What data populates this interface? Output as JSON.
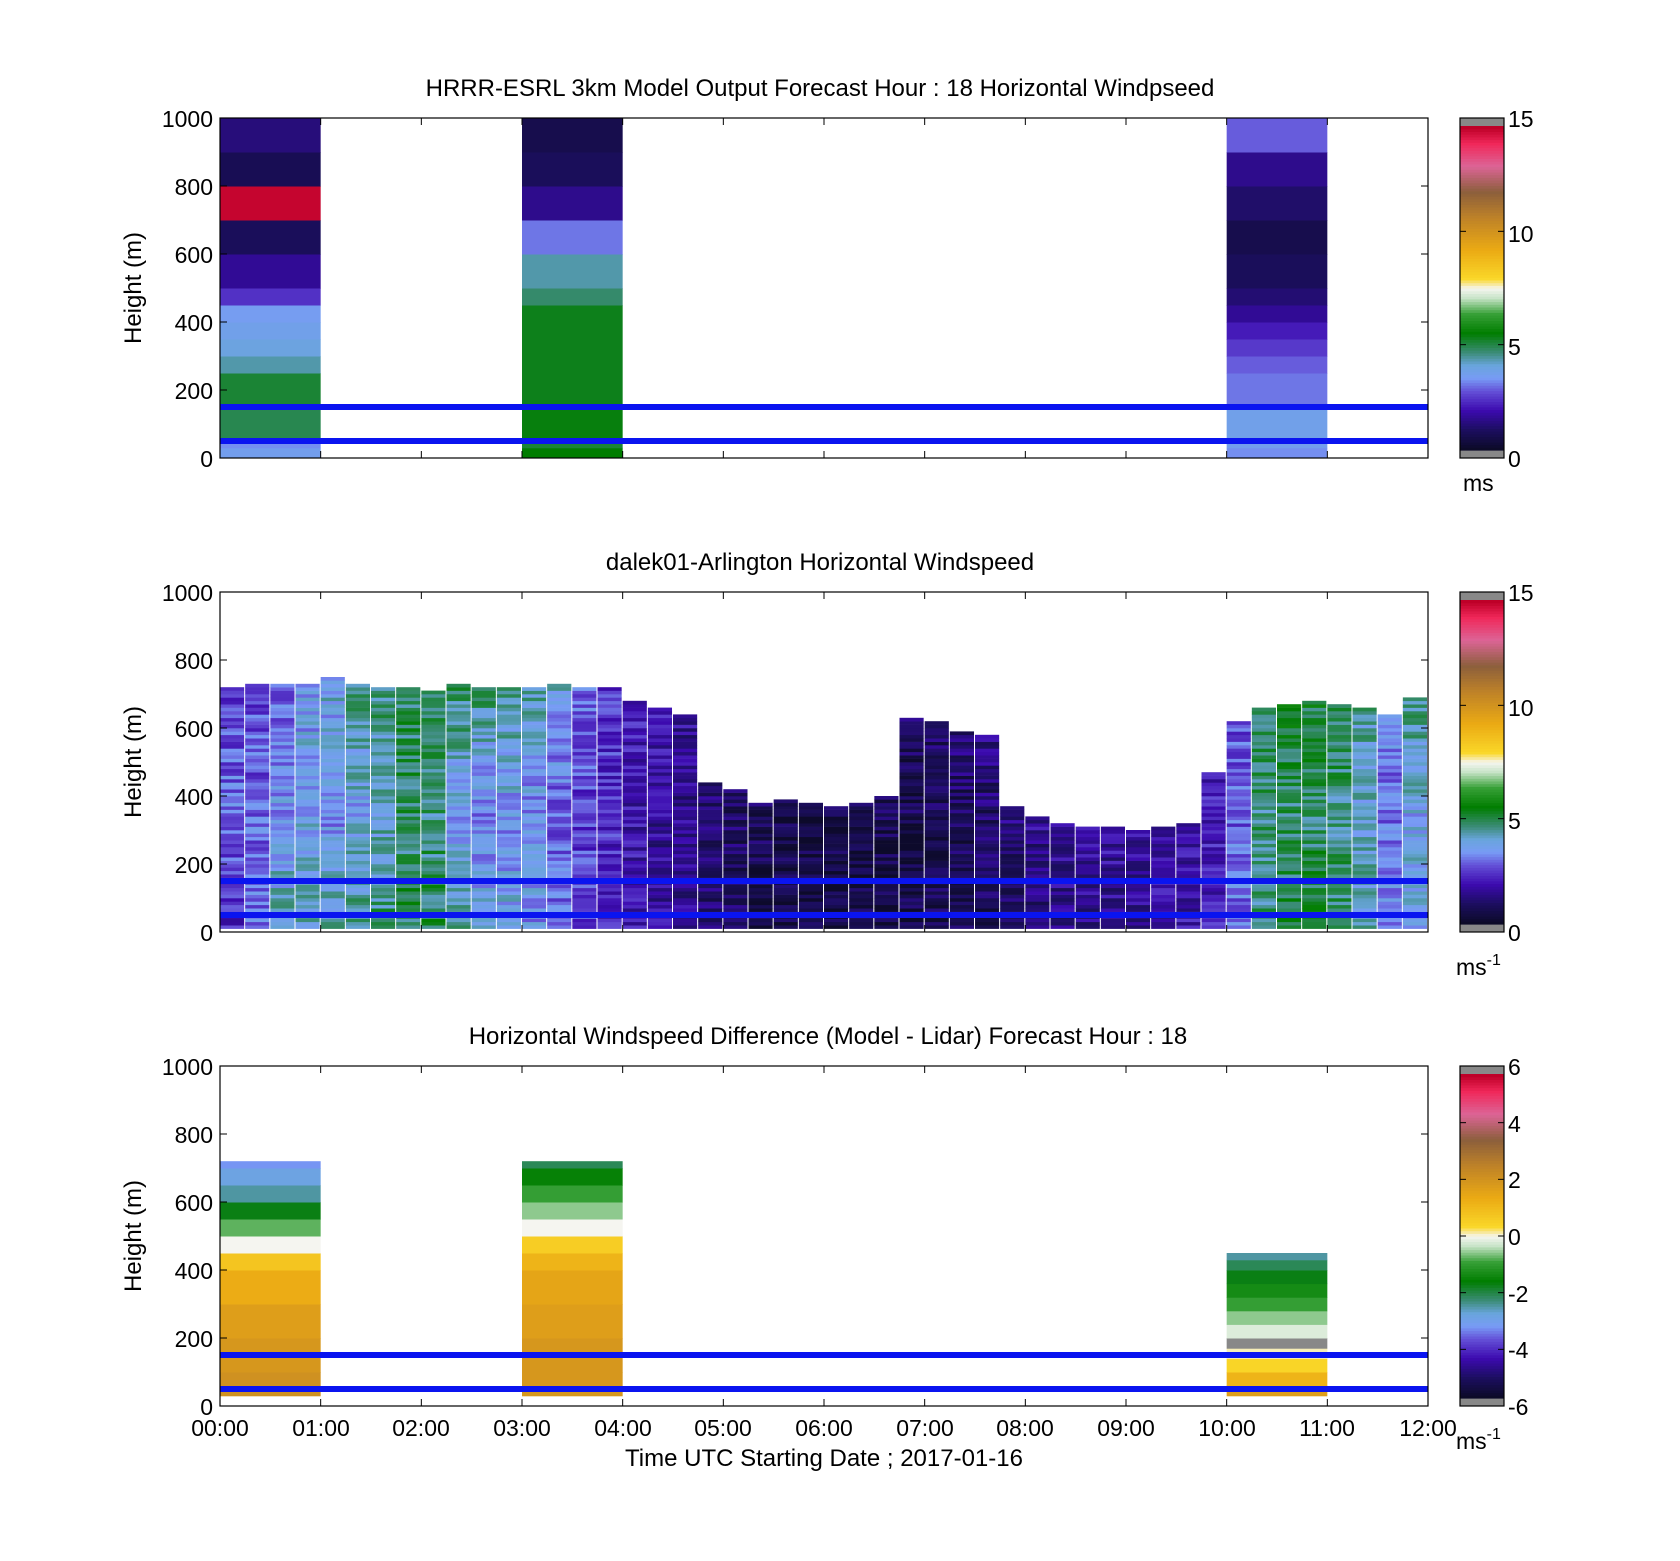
{
  "figure": {
    "xlabel": "Time UTC  Starting Date ; 2017-01-16",
    "x_ticks": [
      "00:00",
      "01:00",
      "02:00",
      "03:00",
      "04:00",
      "05:00",
      "06:00",
      "07:00",
      "08:00",
      "09:00",
      "10:00",
      "11:00",
      "12:00"
    ]
  },
  "chart_data": [
    {
      "type": "heatmap",
      "title": "HRRR-ESRL 3km Model Output   Forecast Hour : 18 Horizontal Windpseed",
      "ylabel": "Height (m)",
      "y_ticks": [
        "0",
        "200",
        "400",
        "600",
        "800",
        "1000"
      ],
      "xlim": [
        0,
        12
      ],
      "ylim": [
        0,
        1000
      ],
      "colorbar": {
        "ticks": [
          "0",
          "5",
          "10",
          "15"
        ],
        "range": [
          0,
          15
        ],
        "units": "ms",
        "unit_exp": ""
      },
      "reference_lines_m": [
        50,
        150
      ],
      "columns": [
        {
          "x0": 0,
          "x1": 1,
          "cells": [
            [
              0,
              30,
              3.5
            ],
            [
              30,
              50,
              3.2
            ],
            [
              50,
              150,
              4.8
            ],
            [
              150,
              250,
              5.0
            ],
            [
              250,
              300,
              4.2
            ],
            [
              300,
              350,
              3.8
            ],
            [
              350,
              400,
              3.6
            ],
            [
              400,
              450,
              3.4
            ],
            [
              450,
              500,
              2.3
            ],
            [
              500,
              600,
              1.5
            ],
            [
              600,
              700,
              0.8
            ],
            [
              700,
              800,
              14.9
            ],
            [
              800,
              900,
              0.7
            ],
            [
              900,
              1000,
              1.2
            ]
          ]
        },
        {
          "x0": 3,
          "x1": 4,
          "cells": [
            [
              0,
              30,
              5.4
            ],
            [
              30,
              50,
              5.0
            ],
            [
              50,
              150,
              5.3
            ],
            [
              150,
              450,
              5.2
            ],
            [
              450,
              500,
              4.6
            ],
            [
              500,
              600,
              4.2
            ],
            [
              600,
              700,
              3.0
            ],
            [
              700,
              800,
              1.4
            ],
            [
              800,
              900,
              0.8
            ],
            [
              900,
              1000,
              0.6
            ]
          ]
        },
        {
          "x0": 10,
          "x1": 11,
          "cells": [
            [
              0,
              30,
              3.2
            ],
            [
              30,
              50,
              3.5
            ],
            [
              50,
              150,
              3.6
            ],
            [
              150,
              250,
              3.0
            ],
            [
              250,
              300,
              2.8
            ],
            [
              300,
              350,
              2.4
            ],
            [
              350,
              400,
              2.0
            ],
            [
              400,
              450,
              1.5
            ],
            [
              450,
              500,
              1.1
            ],
            [
              500,
              600,
              0.8
            ],
            [
              600,
              700,
              0.6
            ],
            [
              700,
              800,
              1.0
            ],
            [
              800,
              900,
              1.4
            ],
            [
              900,
              1000,
              2.8
            ]
          ]
        }
      ]
    },
    {
      "type": "heatmap",
      "title": "dalek01-Arlington  Horizontal Windspeed",
      "ylabel": "Height (m)",
      "y_ticks": [
        "0",
        "200",
        "400",
        "600",
        "800",
        "1000"
      ],
      "xlim": [
        0,
        12
      ],
      "ylim": [
        0,
        1000
      ],
      "colorbar": {
        "ticks": [
          "0",
          "5",
          "10",
          "15"
        ],
        "range": [
          0,
          15
        ],
        "units": "ms",
        "unit_exp": "-1"
      },
      "reference_lines_m": [
        50,
        150
      ],
      "profiles_every_hours": 0.25,
      "profiles": [
        {
          "x": 0.0,
          "top": 720,
          "speed": [
            2.0,
            3.0,
            2.4
          ]
        },
        {
          "x": 0.25,
          "top": 730,
          "speed": [
            3.0,
            2.8,
            2.6
          ]
        },
        {
          "x": 0.5,
          "top": 725,
          "speed": [
            4.0,
            3.4,
            2.6
          ]
        },
        {
          "x": 0.75,
          "top": 730,
          "speed": [
            4.2,
            3.6,
            3.4
          ]
        },
        {
          "x": 1.0,
          "top": 750,
          "speed": [
            4.0,
            3.2,
            3.8
          ]
        },
        {
          "x": 1.25,
          "top": 730,
          "speed": [
            4.4,
            3.6,
            4.4
          ]
        },
        {
          "x": 1.5,
          "top": 720,
          "speed": [
            4.6,
            3.8,
            4.6
          ]
        },
        {
          "x": 1.75,
          "top": 715,
          "speed": [
            4.8,
            4.6,
            4.8
          ]
        },
        {
          "x": 2.0,
          "top": 710,
          "speed": [
            4.8,
            4.4,
            5.0
          ]
        },
        {
          "x": 2.25,
          "top": 725,
          "speed": [
            4.2,
            3.4,
            4.8
          ]
        },
        {
          "x": 2.5,
          "top": 715,
          "speed": [
            3.8,
            3.0,
            4.6
          ]
        },
        {
          "x": 2.75,
          "top": 720,
          "speed": [
            3.6,
            3.4,
            4.4
          ]
        },
        {
          "x": 3.0,
          "top": 715,
          "speed": [
            3.4,
            3.2,
            4.2
          ]
        },
        {
          "x": 3.25,
          "top": 730,
          "speed": [
            3.0,
            2.8,
            3.8
          ]
        },
        {
          "x": 3.5,
          "top": 720,
          "speed": [
            2.6,
            2.4,
            3.0
          ]
        },
        {
          "x": 3.75,
          "top": 720,
          "speed": [
            2.2,
            2.2,
            2.4
          ]
        },
        {
          "x": 4.0,
          "top": 680,
          "speed": [
            1.8,
            1.8,
            2.0
          ]
        },
        {
          "x": 4.25,
          "top": 660,
          "speed": [
            1.6,
            1.6,
            1.8
          ]
        },
        {
          "x": 4.5,
          "top": 640,
          "speed": [
            1.4,
            1.4,
            1.6
          ]
        },
        {
          "x": 4.75,
          "top": 440,
          "speed": [
            1.0,
            1.0,
            1.2
          ]
        },
        {
          "x": 5.0,
          "top": 420,
          "speed": [
            0.8,
            0.8,
            1.0
          ]
        },
        {
          "x": 5.25,
          "top": 380,
          "speed": [
            0.6,
            0.6,
            0.8
          ]
        },
        {
          "x": 5.5,
          "top": 390,
          "speed": [
            0.5,
            0.5,
            0.6
          ]
        },
        {
          "x": 5.75,
          "top": 380,
          "speed": [
            0.4,
            0.4,
            0.6
          ]
        },
        {
          "x": 6.0,
          "top": 370,
          "speed": [
            0.4,
            0.4,
            0.6
          ]
        },
        {
          "x": 6.25,
          "top": 380,
          "speed": [
            0.4,
            0.4,
            0.7
          ]
        },
        {
          "x": 6.5,
          "top": 400,
          "speed": [
            0.5,
            0.5,
            0.8
          ]
        },
        {
          "x": 6.75,
          "top": 630,
          "speed": [
            0.5,
            0.6,
            0.9
          ]
        },
        {
          "x": 7.0,
          "top": 620,
          "speed": [
            0.6,
            0.6,
            1.0
          ]
        },
        {
          "x": 7.25,
          "top": 590,
          "speed": [
            0.7,
            0.7,
            1.2
          ]
        },
        {
          "x": 7.5,
          "top": 580,
          "speed": [
            0.8,
            0.9,
            1.3
          ]
        },
        {
          "x": 7.75,
          "top": 370,
          "speed": [
            1.0,
            1.1,
            1.4
          ]
        },
        {
          "x": 8.0,
          "top": 340,
          "speed": [
            1.1,
            1.2,
            1.5
          ]
        },
        {
          "x": 8.25,
          "top": 320,
          "speed": [
            1.2,
            1.4,
            1.6
          ]
        },
        {
          "x": 8.5,
          "top": 310,
          "speed": [
            1.3,
            1.5,
            1.7
          ]
        },
        {
          "x": 8.75,
          "top": 305,
          "speed": [
            1.4,
            1.5,
            1.8
          ]
        },
        {
          "x": 9.0,
          "top": 300,
          "speed": [
            1.5,
            1.6,
            1.8
          ]
        },
        {
          "x": 9.25,
          "top": 305,
          "speed": [
            1.6,
            1.7,
            1.9
          ]
        },
        {
          "x": 9.5,
          "top": 320,
          "speed": [
            1.8,
            1.8,
            2.0
          ]
        },
        {
          "x": 9.75,
          "top": 470,
          "speed": [
            2.0,
            2.0,
            2.0
          ]
        },
        {
          "x": 10.0,
          "top": 620,
          "speed": [
            3.0,
            2.8,
            2.6
          ]
        },
        {
          "x": 10.25,
          "top": 660,
          "speed": [
            4.6,
            4.4,
            4.8
          ]
        },
        {
          "x": 10.5,
          "top": 670,
          "speed": [
            4.8,
            4.6,
            5.0
          ]
        },
        {
          "x": 10.75,
          "top": 675,
          "speed": [
            5.0,
            4.6,
            5.0
          ]
        },
        {
          "x": 11.0,
          "top": 670,
          "speed": [
            4.8,
            4.4,
            4.8
          ]
        },
        {
          "x": 11.25,
          "top": 660,
          "speed": [
            4.2,
            3.8,
            4.2
          ]
        },
        {
          "x": 11.5,
          "top": 640,
          "speed": [
            3.2,
            3.0,
            3.0
          ]
        },
        {
          "x": 11.75,
          "top": 690,
          "speed": [
            3.8,
            3.6,
            4.4
          ]
        }
      ]
    },
    {
      "type": "heatmap",
      "title": "Horizontal Windspeed Difference (Model - Lidar) Forecast Hour : 18",
      "ylabel": "Height (m)",
      "y_ticks": [
        "0",
        "200",
        "400",
        "600",
        "800",
        "1000"
      ],
      "xlim": [
        0,
        12
      ],
      "ylim": [
        0,
        1000
      ],
      "colorbar": {
        "ticks": [
          "-6",
          "-4",
          "-2",
          "0",
          "2",
          "4",
          "6"
        ],
        "range": [
          -6,
          6
        ],
        "units": "ms",
        "unit_exp": "-1"
      },
      "reference_lines_m": [
        50,
        150
      ],
      "columns": [
        {
          "x0": 0,
          "x1": 1,
          "cells": [
            [
              30,
              100,
              2.2
            ],
            [
              100,
              200,
              2.0
            ],
            [
              200,
              300,
              1.8
            ],
            [
              300,
              400,
              1.4
            ],
            [
              400,
              450,
              0.8
            ],
            [
              450,
              500,
              0.0
            ],
            [
              500,
              550,
              -0.8
            ],
            [
              550,
              600,
              -1.8
            ],
            [
              600,
              650,
              -2.6
            ],
            [
              650,
              700,
              -3.0
            ],
            [
              700,
              720,
              -3.4
            ]
          ]
        },
        {
          "x0": 3,
          "x1": 4,
          "cells": [
            [
              30,
              100,
              2.0
            ],
            [
              100,
              200,
              2.0
            ],
            [
              200,
              300,
              1.8
            ],
            [
              300,
              400,
              1.6
            ],
            [
              400,
              450,
              1.2
            ],
            [
              450,
              500,
              0.6
            ],
            [
              500,
              550,
              0.0
            ],
            [
              550,
              600,
              -0.6
            ],
            [
              600,
              650,
              -1.0
            ],
            [
              650,
              700,
              -1.6
            ],
            [
              700,
              720,
              -2.2
            ]
          ]
        },
        {
          "x0": 10,
          "x1": 11,
          "cells": [
            [
              30,
              60,
              1.8
            ],
            [
              60,
              100,
              1.2
            ],
            [
              100,
              140,
              0.4
            ],
            [
              140,
              170,
              0.1
            ],
            [
              170,
              200,
              6.2
            ],
            [
              200,
              240,
              -0.2
            ],
            [
              240,
              280,
              -0.6
            ],
            [
              280,
              320,
              -1.0
            ],
            [
              320,
              360,
              -1.4
            ],
            [
              360,
              400,
              -1.8
            ],
            [
              400,
              430,
              -2.2
            ],
            [
              430,
              450,
              -2.6
            ]
          ]
        }
      ]
    }
  ]
}
